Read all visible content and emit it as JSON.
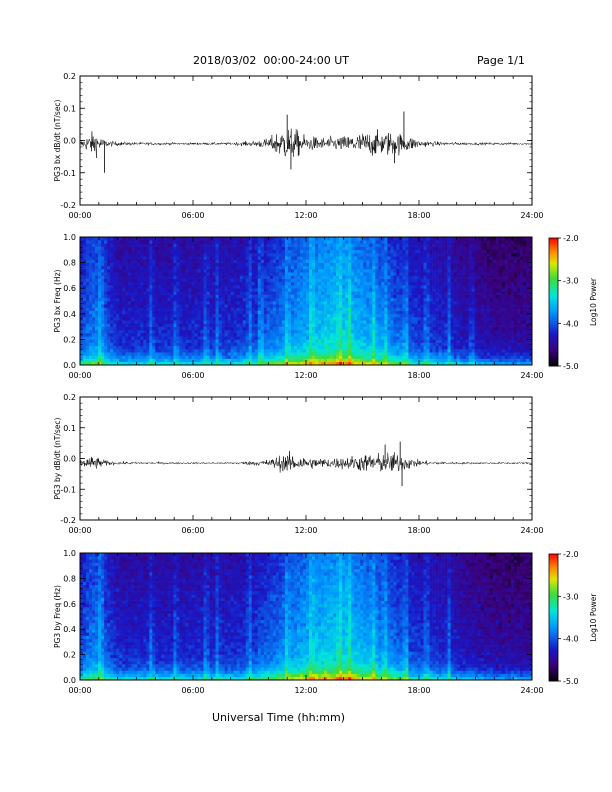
{
  "header": {
    "title": "2018/03/02  00:00-24:00 UT",
    "page": "Page 1/1"
  },
  "xlabel": "Universal Time (hh:mm)",
  "x_ticks": [
    "00:00",
    "06:00",
    "12:00",
    "18:00",
    "24:00"
  ],
  "colorbar": {
    "ticks": [
      "-2.0",
      "-3.0",
      "-4.0",
      "-5.0"
    ],
    "label": "Log10 Power",
    "range": [
      -5.0,
      -2.0
    ]
  },
  "chart_data": [
    {
      "type": "line",
      "ylabel": "PG3 bx dB/dt (nT/sec)",
      "ylim": [
        -0.2,
        0.2
      ],
      "y_ticks": [
        "0.2",
        "0.1",
        "0.0",
        "-0.1",
        "-0.2"
      ],
      "xlim_hours": [
        0,
        24
      ],
      "baseline": -0.01,
      "envelope": {
        "x_hours": [
          0,
          0.2,
          0.5,
          0.8,
          1.0,
          1.2,
          1.5,
          2.0,
          3.0,
          5.0,
          8.0,
          9.0,
          10.0,
          10.5,
          11.0,
          11.5,
          12.0,
          13.0,
          14.0,
          15.0,
          15.5,
          16.0,
          16.5,
          17.0,
          17.5,
          18.0,
          19.0,
          21.0,
          24.0
        ],
        "amplitude": [
          0.01,
          0.02,
          0.04,
          0.05,
          0.035,
          0.02,
          0.012,
          0.008,
          0.006,
          0.005,
          0.005,
          0.01,
          0.02,
          0.05,
          0.07,
          0.055,
          0.03,
          0.025,
          0.03,
          0.045,
          0.05,
          0.045,
          0.05,
          0.04,
          0.03,
          0.015,
          0.008,
          0.005,
          0.005
        ]
      },
      "spikes": [
        {
          "x_hours": 1.3,
          "y": -0.1
        },
        {
          "x_hours": 11.0,
          "y": 0.08
        },
        {
          "x_hours": 11.2,
          "y": -0.09
        },
        {
          "x_hours": 17.2,
          "y": 0.09
        },
        {
          "x_hours": 16.7,
          "y": -0.07
        }
      ]
    },
    {
      "type": "heatmap",
      "ylabel": "PG3 bx Freq (Hz)",
      "ylim": [
        0.0,
        1.0
      ],
      "y_ticks": [
        "1.0",
        "0.8",
        "0.6",
        "0.4",
        "0.2",
        "0.0"
      ],
      "xlim_hours": [
        0,
        24
      ],
      "value_range": [
        -5.0,
        -2.0
      ],
      "bright_bands_hours": [
        1.1,
        3.8,
        5.1,
        6.7,
        7.3,
        9.0,
        9.6,
        11.0,
        12.3,
        13.8,
        14.3,
        15.6,
        16.2,
        17.3,
        18.4,
        19.6,
        20.8
      ]
    },
    {
      "type": "line",
      "ylabel": "PG3 by dB/dt (nT/sec)",
      "ylim": [
        -0.2,
        0.2
      ],
      "y_ticks": [
        "0.2",
        "0.1",
        "0.0",
        "-0.1",
        "-0.2"
      ],
      "xlim_hours": [
        0,
        24
      ],
      "baseline": -0.015,
      "envelope": {
        "x_hours": [
          0,
          0.2,
          0.5,
          0.8,
          1.0,
          1.2,
          1.5,
          2.0,
          3.0,
          5.0,
          8.0,
          9.0,
          10.0,
          10.5,
          11.0,
          11.5,
          12.0,
          13.0,
          14.0,
          15.0,
          15.5,
          16.0,
          16.5,
          17.0,
          17.5,
          18.0,
          19.0,
          21.0,
          24.0
        ],
        "amplitude": [
          0.01,
          0.02,
          0.025,
          0.03,
          0.02,
          0.015,
          0.01,
          0.006,
          0.005,
          0.004,
          0.004,
          0.008,
          0.015,
          0.03,
          0.04,
          0.035,
          0.025,
          0.02,
          0.025,
          0.035,
          0.04,
          0.04,
          0.045,
          0.04,
          0.025,
          0.012,
          0.006,
          0.004,
          0.004
        ]
      },
      "spikes": [
        {
          "x_hours": 16.2,
          "y": 0.045
        },
        {
          "x_hours": 17.0,
          "y": 0.055
        },
        {
          "x_hours": 17.1,
          "y": -0.09
        }
      ]
    },
    {
      "type": "heatmap",
      "ylabel": "PG3 by Freq (Hz)",
      "ylim": [
        0.0,
        1.0
      ],
      "y_ticks": [
        "1.0",
        "0.8",
        "0.6",
        "0.4",
        "0.2",
        "0.0"
      ],
      "xlim_hours": [
        0,
        24
      ],
      "value_range": [
        -5.0,
        -2.0
      ],
      "bright_bands_hours": [
        1.1,
        3.8,
        5.1,
        6.7,
        7.3,
        9.0,
        11.0,
        12.3,
        13.8,
        14.3,
        15.6,
        16.2,
        17.3,
        18.4,
        19.6
      ]
    }
  ]
}
